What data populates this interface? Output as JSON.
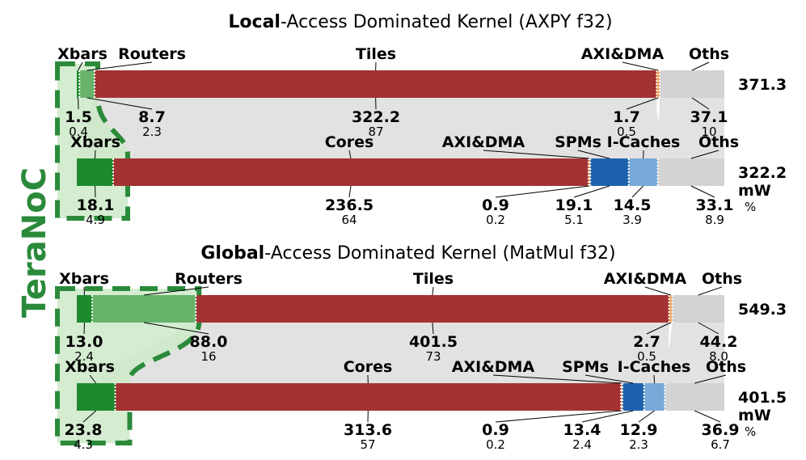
{
  "colors": {
    "xbars": "#1e8a2e",
    "routers": "#68b36c",
    "tiles": "#a33232",
    "cores": "#a33232",
    "axi_dma": "#f2a35d",
    "spms": "#1e62ae",
    "icaches": "#78a9d8",
    "oths": "#d3d3d3",
    "band": "#e2e2e2",
    "teranoc": "#2a8a3a",
    "teranoc_fill": "#cde9c8"
  },
  "teranoc_label": "TeraNoC",
  "unit_mw": "mW",
  "unit_pct": "%",
  "chart_data": [
    {
      "type": "bar",
      "title_bold": "Local",
      "title_rest": "-Access Dominated Kernel (AXPY f32)",
      "panel": "local",
      "bar": "top",
      "total": "371.3",
      "categories": [
        "Xbars",
        "Routers",
        "Tiles",
        "AXI&DMA",
        "Oths"
      ],
      "values": [
        1.5,
        8.7,
        322.2,
        1.7,
        37.1
      ],
      "value_labels": [
        "1.5",
        "8.7",
        "322.2",
        "1.7",
        "37.1"
      ],
      "percents": [
        "0.4",
        "2.3",
        "87",
        "0.5",
        "10"
      ]
    },
    {
      "type": "bar",
      "panel": "local",
      "bar": "bottom",
      "total": "322.2",
      "categories": [
        "Xbars",
        "Cores",
        "AXI&DMA",
        "SPMs",
        "I-Caches",
        "Oths"
      ],
      "values": [
        18.1,
        236.5,
        0.9,
        19.1,
        14.5,
        33.1
      ],
      "value_labels": [
        "18.1",
        "236.5",
        "0.9",
        "19.1",
        "14.5",
        "33.1"
      ],
      "percents": [
        "4.9",
        "64",
        "0.2",
        "5.1",
        "3.9",
        "8.9"
      ]
    },
    {
      "type": "bar",
      "title_bold": "Global",
      "title_rest": "-Access Dominated Kernel (MatMul f32)",
      "panel": "global",
      "bar": "top",
      "total": "549.3",
      "categories": [
        "Xbars",
        "Routers",
        "Tiles",
        "AXI&DMA",
        "Oths"
      ],
      "values": [
        13.0,
        88.0,
        401.5,
        2.7,
        44.2
      ],
      "value_labels": [
        "13.0",
        "88.0",
        "401.5",
        "2.7",
        "44.2"
      ],
      "percents": [
        "2.4",
        "16",
        "73",
        "0.5",
        "8.0"
      ]
    },
    {
      "type": "bar",
      "panel": "global",
      "bar": "bottom",
      "total": "401.5",
      "categories": [
        "Xbars",
        "Cores",
        "AXI&DMA",
        "SPMs",
        "I-Caches",
        "Oths"
      ],
      "values": [
        23.8,
        313.6,
        0.9,
        13.4,
        12.9,
        36.9
      ],
      "value_labels": [
        "23.8",
        "313.6",
        "0.9",
        "13.4",
        "12.9",
        "36.9"
      ],
      "percents": [
        "4.3",
        "57",
        "0.2",
        "2.4",
        "2.3",
        "6.7"
      ]
    }
  ]
}
